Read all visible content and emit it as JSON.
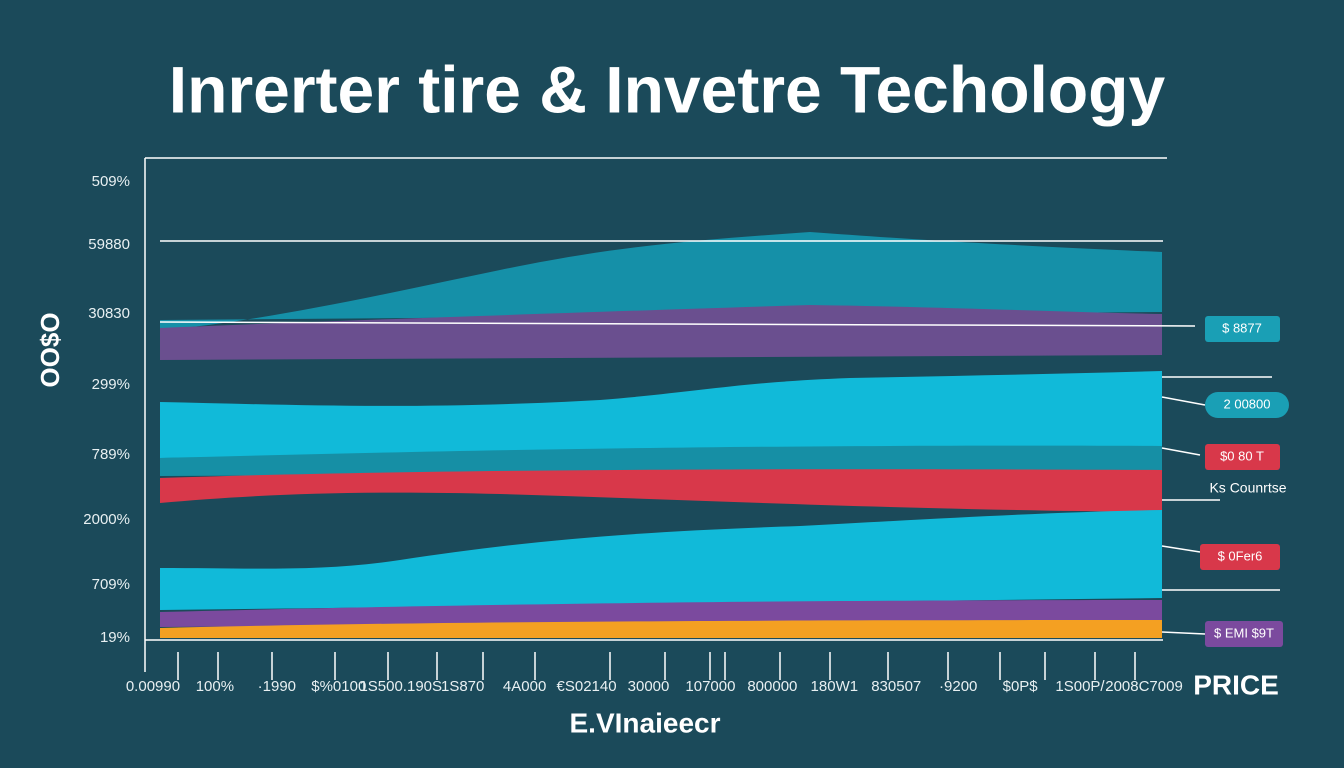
{
  "title": "Inrerter tire & Invetre Techology",
  "y_axis_label": "OO$O",
  "y_labels": [
    "509%",
    "59880",
    "30830",
    "299%",
    "789%",
    "2000%",
    "709%",
    "19%"
  ],
  "x_labels": [
    "0.00990",
    "100%",
    "·1990",
    "$%0100",
    "1S500.190S",
    "1S870",
    "4A000",
    "€S02140",
    "30000",
    "107000",
    "800000",
    "180W1",
    "830507",
    "·9200",
    "$0P$",
    "1S00P/.",
    "2008C7009"
  ],
  "x_axis_label": "E.VInaieecr",
  "side_label": "PRICE",
  "tags": [
    "$ 8877",
    "2 00800",
    "$0 80 T",
    "$ 0Fer6",
    "$ EMI $9T"
  ],
  "side_note": "Ks Counrtse"
}
